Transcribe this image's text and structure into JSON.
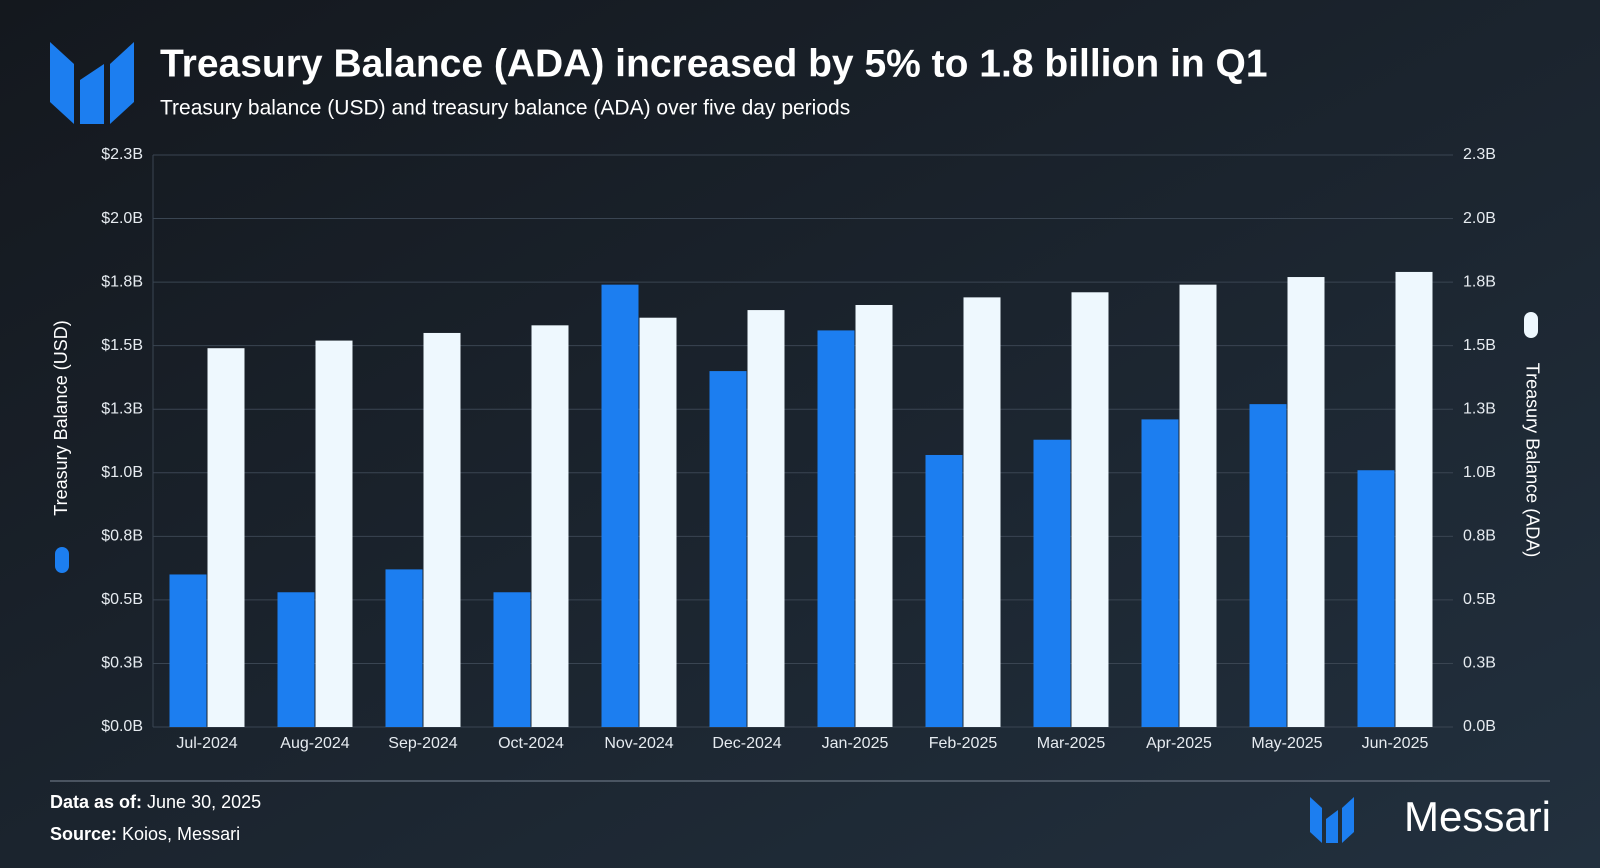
{
  "chart_data": {
    "type": "bar",
    "title": "Treasury Balance (ADA) increased by 5% to 1.8 billion in Q1",
    "subtitle": "Treasury balance (USD) and treasury balance (ADA) over five day periods",
    "categories": [
      "Jul-2024",
      "Aug-2024",
      "Sep-2024",
      "Oct-2024",
      "Nov-2024",
      "Dec-2024",
      "Jan-2025",
      "Feb-2025",
      "Mar-2025",
      "Apr-2025",
      "May-2025",
      "Jun-2025"
    ],
    "series": [
      {
        "name": "Treasury Balance (USD)",
        "color": "#1c7ef0",
        "values": [
          0.6,
          0.53,
          0.62,
          0.53,
          1.74,
          1.4,
          1.56,
          1.07,
          1.13,
          1.21,
          1.27,
          1.01
        ]
      },
      {
        "name": "Treasury Balance (ADA)",
        "color": "#eef8fe",
        "axis": "y2",
        "values": [
          1.49,
          1.52,
          1.55,
          1.58,
          1.61,
          1.64,
          1.66,
          1.69,
          1.71,
          1.74,
          1.77,
          1.79
        ]
      }
    ],
    "ylim": [
      0,
      2.25
    ],
    "yticks": [
      {
        "value": 0,
        "label": "$0.0B"
      },
      {
        "value": 0.25,
        "label": "$0.3B"
      },
      {
        "value": 0.5,
        "label": "$0.5B"
      },
      {
        "value": 0.75,
        "label": "$0.8B"
      },
      {
        "value": 1,
        "label": "$1.0B"
      },
      {
        "value": 1.25,
        "label": "$1.3B"
      },
      {
        "value": 1.5,
        "label": "$1.5B"
      },
      {
        "value": 1.75,
        "label": "$1.8B"
      },
      {
        "value": 2,
        "label": "$2.0B"
      },
      {
        "value": 2.25,
        "label": "$2.3B"
      }
    ],
    "y2lim": [
      0,
      2.25
    ],
    "y2ticks": [
      {
        "value": 0,
        "label": "0.0B"
      },
      {
        "value": 0.25,
        "label": "0.3B"
      },
      {
        "value": 0.5,
        "label": "0.5B"
      },
      {
        "value": 0.75,
        "label": "0.8B"
      },
      {
        "value": 1,
        "label": "1.0B"
      },
      {
        "value": 1.25,
        "label": "1.3B"
      },
      {
        "value": 1.5,
        "label": "1.5B"
      },
      {
        "value": 1.75,
        "label": "1.8B"
      },
      {
        "value": 2,
        "label": "2.0B"
      },
      {
        "value": 2.25,
        "label": "2.3B"
      }
    ],
    "grid": true
  },
  "footer": {
    "date_label": "Data as of:",
    "date": "June 30, 2025",
    "source_label": "Source:",
    "source": "Koios, Messari"
  },
  "brand": "Messari"
}
